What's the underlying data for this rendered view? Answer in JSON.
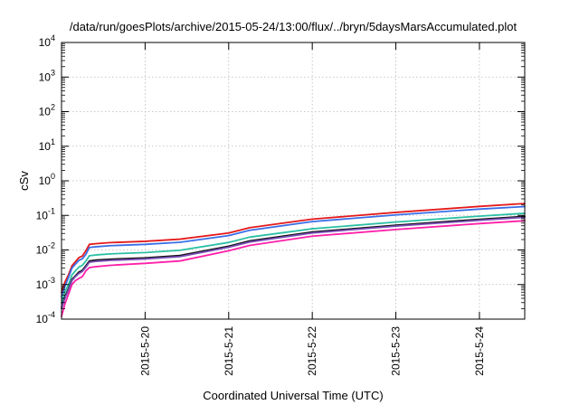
{
  "chart_data": {
    "type": "line",
    "title": "/data/run/goesPlots/archive/2015-05-24/13:00/flux/../bryn/5daysMarsAccumulated.plot",
    "xlabel": "Coordinated Universal Time (UTC)",
    "ylabel": "cSv",
    "y_scale": "log",
    "ylim": [
      0.0001,
      10000
    ],
    "y_ticks": [
      {
        "value": 0.0001,
        "base": "10",
        "exp": "-4"
      },
      {
        "value": 0.001,
        "base": "10",
        "exp": "-3"
      },
      {
        "value": 0.01,
        "base": "10",
        "exp": "-2"
      },
      {
        "value": 0.1,
        "base": "10",
        "exp": "-1"
      },
      {
        "value": 1,
        "base": "10",
        "exp": "0"
      },
      {
        "value": 10,
        "base": "10",
        "exp": "1"
      },
      {
        "value": 100,
        "base": "10",
        "exp": "2"
      },
      {
        "value": 1000,
        "base": "10",
        "exp": "3"
      },
      {
        "value": 10000,
        "base": "10",
        "exp": "4"
      }
    ],
    "xlim": [
      "2015-05-19T00:00",
      "2015-05-24T13:00"
    ],
    "x_ticks": [
      {
        "value": "2015-05-20T00:00",
        "label": "2015-5-20"
      },
      {
        "value": "2015-05-21T00:00",
        "label": "2015-5-21"
      },
      {
        "value": "2015-05-22T00:00",
        "label": "2015-5-22"
      },
      {
        "value": "2015-05-23T00:00",
        "label": "2015-5-23"
      },
      {
        "value": "2015-05-24T00:00",
        "label": "2015-5-24"
      }
    ],
    "grid": true,
    "legend": "none",
    "series": [
      {
        "color": "#e41a1c",
        "width": 1.8,
        "points": [
          [
            "2015-05-19T00:00",
            0.0006
          ],
          [
            "2015-05-19T01:00",
            0.0012
          ],
          [
            "2015-05-19T02:00",
            0.0019
          ],
          [
            "2015-05-19T03:00",
            0.0035
          ],
          [
            "2015-05-19T04:00",
            0.0046
          ],
          [
            "2015-05-19T05:00",
            0.006
          ],
          [
            "2015-05-19T06:00",
            0.0067
          ],
          [
            "2015-05-19T07:00",
            0.0095
          ],
          [
            "2015-05-19T08:00",
            0.0145
          ],
          [
            "2015-05-19T10:00",
            0.0152
          ],
          [
            "2015-05-19T14:00",
            0.0163
          ],
          [
            "2015-05-20T00:00",
            0.0178
          ],
          [
            "2015-05-20T10:00",
            0.0205
          ],
          [
            "2015-05-21T00:00",
            0.031
          ],
          [
            "2015-05-21T06:00",
            0.044
          ],
          [
            "2015-05-22T00:00",
            0.078
          ],
          [
            "2015-05-23T00:00",
            0.122
          ],
          [
            "2015-05-24T00:00",
            0.182
          ],
          [
            "2015-05-24T13:00",
            0.22
          ]
        ]
      },
      {
        "color": "#3a6ee8",
        "width": 1.8,
        "points": [
          [
            "2015-05-19T00:00",
            0.00045
          ],
          [
            "2015-05-19T01:00",
            0.0009
          ],
          [
            "2015-05-19T02:00",
            0.0016
          ],
          [
            "2015-05-19T03:00",
            0.003
          ],
          [
            "2015-05-19T04:00",
            0.0039
          ],
          [
            "2015-05-19T05:00",
            0.005
          ],
          [
            "2015-05-19T06:00",
            0.0056
          ],
          [
            "2015-05-19T07:00",
            0.0075
          ],
          [
            "2015-05-19T08:00",
            0.0118
          ],
          [
            "2015-05-19T10:00",
            0.0124
          ],
          [
            "2015-05-19T14:00",
            0.0133
          ],
          [
            "2015-05-20T00:00",
            0.0145
          ],
          [
            "2015-05-20T10:00",
            0.0167
          ],
          [
            "2015-05-21T00:00",
            0.026
          ],
          [
            "2015-05-21T06:00",
            0.037
          ],
          [
            "2015-05-22T00:00",
            0.066
          ],
          [
            "2015-05-23T00:00",
            0.103
          ],
          [
            "2015-05-24T00:00",
            0.152
          ],
          [
            "2015-05-24T13:00",
            0.18
          ]
        ]
      },
      {
        "color": "#2bbfa4",
        "width": 1.8,
        "points": [
          [
            "2015-05-19T00:00",
            0.0003
          ],
          [
            "2015-05-19T01:00",
            0.00062
          ],
          [
            "2015-05-19T02:00",
            0.001
          ],
          [
            "2015-05-19T03:00",
            0.0019
          ],
          [
            "2015-05-19T04:00",
            0.0025
          ],
          [
            "2015-05-19T05:00",
            0.0032
          ],
          [
            "2015-05-19T06:00",
            0.0036
          ],
          [
            "2015-05-19T07:00",
            0.0048
          ],
          [
            "2015-05-19T08:00",
            0.0068
          ],
          [
            "2015-05-19T10:00",
            0.0072
          ],
          [
            "2015-05-19T14:00",
            0.0077
          ],
          [
            "2015-05-20T00:00",
            0.0084
          ],
          [
            "2015-05-20T10:00",
            0.0098
          ],
          [
            "2015-05-21T00:00",
            0.0165
          ],
          [
            "2015-05-21T06:00",
            0.0235
          ],
          [
            "2015-05-22T00:00",
            0.041
          ],
          [
            "2015-05-23T00:00",
            0.064
          ],
          [
            "2015-05-24T00:00",
            0.095
          ],
          [
            "2015-05-24T13:00",
            0.115
          ]
        ]
      },
      {
        "color": "#111111",
        "width": 1.8,
        "points": [
          [
            "2015-05-19T00:00",
            0.00022
          ],
          [
            "2015-05-19T01:00",
            0.00045
          ],
          [
            "2015-05-19T02:00",
            0.00075
          ],
          [
            "2015-05-19T03:00",
            0.0014
          ],
          [
            "2015-05-19T04:00",
            0.0018
          ],
          [
            "2015-05-19T05:00",
            0.0023
          ],
          [
            "2015-05-19T06:00",
            0.0026
          ],
          [
            "2015-05-19T07:00",
            0.0035
          ],
          [
            "2015-05-19T08:00",
            0.0048
          ],
          [
            "2015-05-19T10:00",
            0.0051
          ],
          [
            "2015-05-19T14:00",
            0.0054
          ],
          [
            "2015-05-20T00:00",
            0.0059
          ],
          [
            "2015-05-20T10:00",
            0.0069
          ],
          [
            "2015-05-21T00:00",
            0.0128
          ],
          [
            "2015-05-21T06:00",
            0.0182
          ],
          [
            "2015-05-22T00:00",
            0.033
          ],
          [
            "2015-05-23T00:00",
            0.052
          ],
          [
            "2015-05-24T00:00",
            0.077
          ],
          [
            "2015-05-24T13:00",
            0.093
          ]
        ]
      },
      {
        "color": "#7b4fb8",
        "width": 1.8,
        "points": [
          [
            "2015-05-19T00:00",
            0.0002
          ],
          [
            "2015-05-19T01:00",
            0.00041
          ],
          [
            "2015-05-19T02:00",
            0.00068
          ],
          [
            "2015-05-19T03:00",
            0.0013
          ],
          [
            "2015-05-19T04:00",
            0.0017
          ],
          [
            "2015-05-19T05:00",
            0.0021
          ],
          [
            "2015-05-19T06:00",
            0.0024
          ],
          [
            "2015-05-19T07:00",
            0.0032
          ],
          [
            "2015-05-19T08:00",
            0.0044
          ],
          [
            "2015-05-19T10:00",
            0.0047
          ],
          [
            "2015-05-19T14:00",
            0.005
          ],
          [
            "2015-05-20T00:00",
            0.0055
          ],
          [
            "2015-05-20T10:00",
            0.0064
          ],
          [
            "2015-05-21T00:00",
            0.012
          ],
          [
            "2015-05-21T06:00",
            0.017
          ],
          [
            "2015-05-22T00:00",
            0.031
          ],
          [
            "2015-05-23T00:00",
            0.049
          ],
          [
            "2015-05-24T00:00",
            0.072
          ],
          [
            "2015-05-24T13:00",
            0.088
          ]
        ]
      },
      {
        "color": "#ff1fa8",
        "width": 1.8,
        "points": [
          [
            "2015-05-19T00:00",
            0.00012
          ],
          [
            "2015-05-19T01:00",
            0.00028
          ],
          [
            "2015-05-19T02:00",
            0.00052
          ],
          [
            "2015-05-19T03:00",
            0.001
          ],
          [
            "2015-05-19T04:00",
            0.0013
          ],
          [
            "2015-05-19T05:00",
            0.0015
          ],
          [
            "2015-05-19T06:00",
            0.0017
          ],
          [
            "2015-05-19T07:00",
            0.0025
          ],
          [
            "2015-05-19T08:00",
            0.0031
          ],
          [
            "2015-05-19T10:00",
            0.0033
          ],
          [
            "2015-05-19T14:00",
            0.0036
          ],
          [
            "2015-05-20T00:00",
            0.0041
          ],
          [
            "2015-05-20T10:00",
            0.0048
          ],
          [
            "2015-05-21T00:00",
            0.0095
          ],
          [
            "2015-05-21T06:00",
            0.0135
          ],
          [
            "2015-05-22T00:00",
            0.025
          ],
          [
            "2015-05-23T00:00",
            0.039
          ],
          [
            "2015-05-24T00:00",
            0.058
          ],
          [
            "2015-05-24T13:00",
            0.07
          ]
        ]
      }
    ]
  }
}
